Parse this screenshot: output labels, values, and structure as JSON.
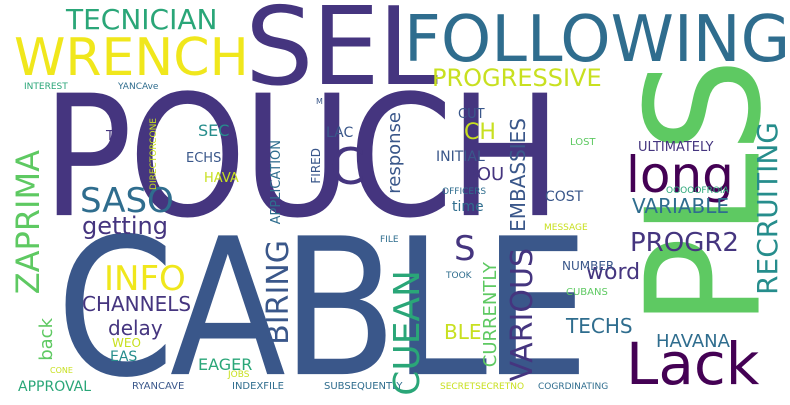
{
  "colors": {
    "background": "#ffffff",
    "indigo": "#45357f",
    "navy": "#3a578a",
    "blue": "#2f6d8e",
    "teal": "#268d8c",
    "green": "#2aa678",
    "lightgreen": "#5ec962",
    "yellow": "#c8e020",
    "bright": "#f0e71c",
    "purple": "#440154"
  },
  "words": {
    "pouch": "POUCH",
    "cable": "CABLE",
    "pls": "PLS",
    "sel": "SEL",
    "following": "FOLLOWING",
    "wrench": "WRENCH",
    "tecnician": "TECNICIAN",
    "lack": "Lack",
    "long": "long",
    "c": "C",
    "progressive": "PROGRESSIVE",
    "recruiting": "RECRUITING",
    "zaprima": "ZAPRIMA",
    "saso": "SASO",
    "getting": "getting",
    "info": "INFO",
    "channels": "CHANNELS",
    "delay": "delay",
    "back": "back",
    "weo": "WEO",
    "eas": "EAS",
    "approval": "APPROVAL",
    "cone": "CONE",
    "ryancave": "RYANCAVE",
    "indexfile": "INDEXFILE",
    "eager": "EAGER",
    "jobs": "JOBS",
    "subsequently": "SUBSEQUENTLY",
    "secretsecretno": "SECRETSECRETNO",
    "cogrdinating": "COGRDINATING",
    "cuean": "CUEAN",
    "biring": "BIRING",
    "various": "VARIOUS",
    "currently": "CURRENTLY",
    "ble": "BLE",
    "s": "S",
    "progr2": "PROGR2",
    "word": "word",
    "techs": "TECHS",
    "havana": "HAVANA",
    "variable": "VARIABLE",
    "ultimately": "ULTIMATELY",
    "ooooofroia": "OOOOOFROIA",
    "message": "MESSAGE",
    "lost": "LOST",
    "cost": "COST",
    "embassies": "EMBASSIES",
    "response": "response",
    "initial": "INITIAL",
    "officers": "OFFICERS",
    "time": "time",
    "pou": "POU",
    "ch": "CH",
    "cut": "CUT",
    "lac": "LAC",
    "fired": "FIRED",
    "application": "APPLICATION",
    "hava": "HAVA",
    "echs": "ECHS",
    "sec": "SEC",
    "directorcone": "DIRECTORCONE",
    "t": "T",
    "interest": "INTEREST",
    "yancave": "YANCAve",
    "m": "M",
    "file": "FILE",
    "took": "TOOK",
    "number": "NUMBER",
    "cubans": "CUBANS"
  }
}
